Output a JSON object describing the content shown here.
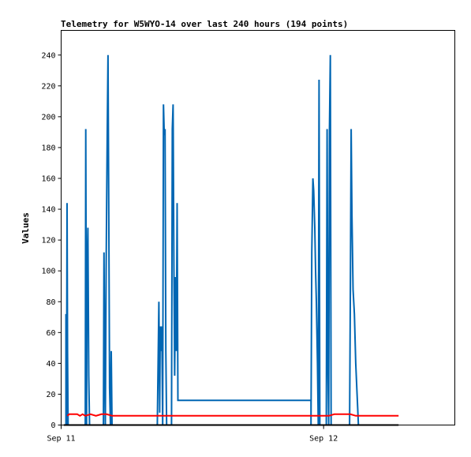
{
  "chart_data": {
    "type": "line",
    "title": "Telemetry for W5WYO-14 over last 240 hours (194 points)",
    "xlabel": "",
    "ylabel": "Values",
    "x_axis_unit": "hours",
    "xlim": [
      0,
      14.7
    ],
    "ylim": [
      0,
      256
    ],
    "yticks": [
      0,
      20,
      40,
      60,
      80,
      100,
      120,
      140,
      160,
      180,
      200,
      220,
      240
    ],
    "xticks": [
      {
        "x": 0,
        "label": "Sep 11"
      },
      {
        "x": 9.8,
        "label": "Sep 12"
      }
    ],
    "grid": false,
    "legend": "none",
    "series": [
      {
        "color": "#0066b3",
        "points": [
          [
            0.18,
            0
          ],
          [
            0.18,
            72
          ],
          [
            0.2,
            0
          ],
          [
            0.22,
            144
          ],
          [
            0.24,
            48
          ],
          [
            0.26,
            0
          ],
          [
            0.9,
            0
          ],
          [
            0.92,
            192
          ],
          [
            0.95,
            0
          ],
          [
            0.97,
            96
          ],
          [
            1.0,
            128
          ],
          [
            1.03,
            32
          ],
          [
            1.06,
            0
          ],
          [
            1.58,
            0
          ],
          [
            1.6,
            112
          ],
          [
            1.62,
            56
          ],
          [
            1.65,
            0
          ],
          [
            1.68,
            100
          ],
          [
            1.72,
            188
          ],
          [
            1.75,
            240
          ],
          [
            1.78,
            136
          ],
          [
            1.81,
            24
          ],
          [
            1.84,
            0
          ],
          [
            1.87,
            48
          ],
          [
            1.9,
            0
          ],
          [
            3.59,
            0
          ],
          [
            3.62,
            40
          ],
          [
            3.65,
            80
          ],
          [
            3.68,
            8
          ],
          [
            3.7,
            64
          ],
          [
            3.73,
            48
          ],
          [
            3.76,
            64
          ],
          [
            3.79,
            0
          ],
          [
            3.82,
            208
          ],
          [
            3.85,
            188
          ],
          [
            3.88,
            192
          ],
          [
            3.91,
            48
          ],
          [
            3.94,
            0
          ],
          [
            4.12,
            0
          ],
          [
            4.15,
            192
          ],
          [
            4.18,
            208
          ],
          [
            4.21,
            104
          ],
          [
            4.24,
            32
          ],
          [
            4.27,
            96
          ],
          [
            4.3,
            48
          ],
          [
            4.33,
            144
          ],
          [
            4.36,
            16
          ],
          [
            9.33,
            16
          ],
          [
            9.33,
            0
          ],
          [
            9.36,
            112
          ],
          [
            9.4,
            160
          ],
          [
            9.43,
            152
          ],
          [
            9.47,
            128
          ],
          [
            9.5,
            100
          ],
          [
            9.53,
            80
          ],
          [
            9.57,
            40
          ],
          [
            9.6,
            0
          ],
          [
            9.63,
            224
          ],
          [
            9.66,
            0
          ],
          [
            9.9,
            0
          ],
          [
            9.93,
            192
          ],
          [
            9.96,
            40
          ],
          [
            9.99,
            0
          ],
          [
            10.02,
            192
          ],
          [
            10.05,
            240
          ],
          [
            10.08,
            0
          ],
          [
            10.77,
            0
          ],
          [
            10.8,
            88
          ],
          [
            10.83,
            192
          ],
          [
            10.86,
            136
          ],
          [
            10.9,
            88
          ],
          [
            10.95,
            72
          ],
          [
            11.0,
            40
          ],
          [
            11.05,
            20
          ],
          [
            11.1,
            0
          ]
        ]
      },
      {
        "color": "#ff0000",
        "points": [
          [
            0.23,
            6
          ],
          [
            0.3,
            7
          ],
          [
            0.6,
            7
          ],
          [
            0.7,
            6
          ],
          [
            0.8,
            7
          ],
          [
            0.9,
            6
          ],
          [
            1.1,
            7
          ],
          [
            1.3,
            6
          ],
          [
            1.5,
            7
          ],
          [
            1.7,
            7
          ],
          [
            1.9,
            6
          ],
          [
            3.0,
            6
          ],
          [
            5.0,
            6
          ],
          [
            7.0,
            6
          ],
          [
            9.0,
            6
          ],
          [
            10.0,
            6
          ],
          [
            10.2,
            7
          ],
          [
            10.8,
            7
          ],
          [
            11.0,
            6
          ],
          [
            12.6,
            6
          ]
        ]
      },
      {
        "color": "#000000",
        "points": [
          [
            0.1,
            0
          ],
          [
            12.6,
            0
          ]
        ]
      }
    ]
  }
}
